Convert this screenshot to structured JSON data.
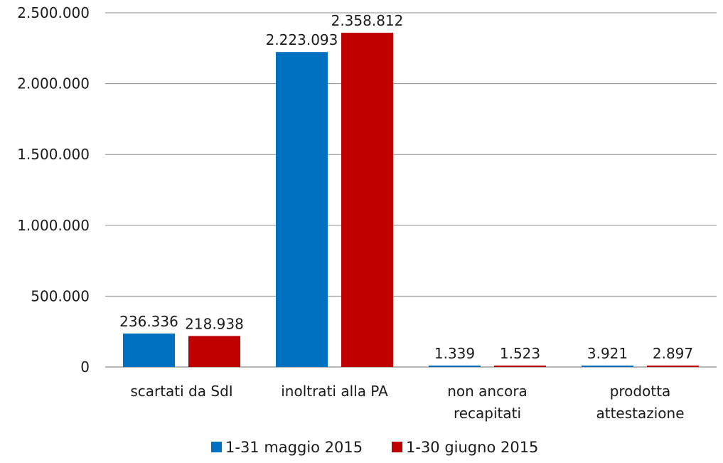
{
  "chart_data": {
    "type": "bar",
    "title": "",
    "xlabel": "",
    "ylabel": "",
    "ylim": [
      0,
      2500000
    ],
    "yticks": [
      0,
      500000,
      1000000,
      1500000,
      2000000,
      2500000
    ],
    "ytick_labels": [
      "0",
      "500.000",
      "1.000.000",
      "1.500.000",
      "2.000.000",
      "2.500.000"
    ],
    "grid": true,
    "legend_position": "bottom-center",
    "categories": [
      [
        "scartati da SdI"
      ],
      [
        "inoltrati alla PA"
      ],
      [
        "non ancora",
        "recapitati"
      ],
      [
        "prodotta",
        "attestazione"
      ]
    ],
    "series": [
      {
        "name": "1-31 maggio 2015",
        "color": "#0070C0",
        "values": [
          236336,
          2223093,
          1339,
          3921
        ],
        "labels": [
          "236.336",
          "2.223.093",
          "1.339",
          "3.921"
        ]
      },
      {
        "name": "1-30 giugno 2015",
        "color": "#C00000",
        "values": [
          218938,
          2358812,
          1523,
          2897
        ],
        "labels": [
          "218.938",
          "2.358.812",
          "1.523",
          "2.897"
        ]
      }
    ]
  }
}
